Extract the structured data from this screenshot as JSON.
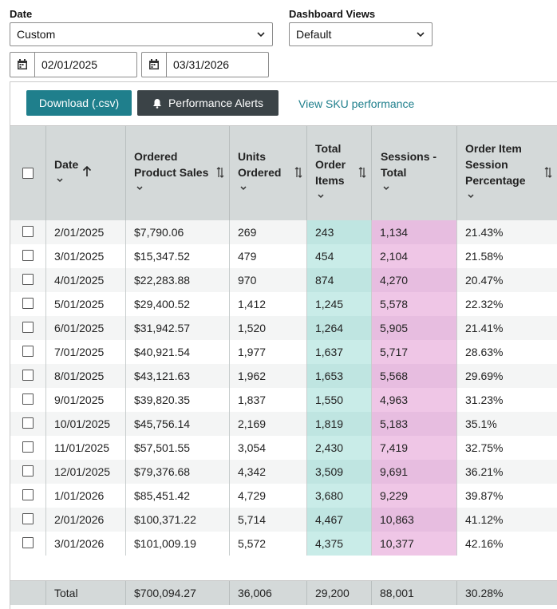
{
  "filters": {
    "date_label": "Date",
    "date_select": "Custom",
    "views_label": "Dashboard Views",
    "views_select": "Default",
    "start_date": "02/01/2025",
    "end_date": "03/31/2026"
  },
  "toolbar": {
    "download_label": "Download (.csv)",
    "alerts_label": "Performance Alerts",
    "sku_link": "View SKU performance"
  },
  "columns": {
    "date": "Date",
    "sales": [
      "Ordered",
      "Product Sales"
    ],
    "units": [
      "Units",
      "Ordered"
    ],
    "items": [
      "Total",
      "Order",
      "Items"
    ],
    "sessions": [
      "Sessions -",
      "Total"
    ],
    "pct": [
      "Order Item",
      "Session",
      "Percentage"
    ]
  },
  "rows": [
    {
      "date": "2/01/2025",
      "sales": "$7,790.06",
      "units": "269",
      "items": "243",
      "sessions": "1,134",
      "pct": "21.43%"
    },
    {
      "date": "3/01/2025",
      "sales": "$15,347.52",
      "units": "479",
      "items": "454",
      "sessions": "2,104",
      "pct": "21.58%"
    },
    {
      "date": "4/01/2025",
      "sales": "$22,283.88",
      "units": "970",
      "items": "874",
      "sessions": "4,270",
      "pct": "20.47%"
    },
    {
      "date": "5/01/2025",
      "sales": "$29,400.52",
      "units": "1,412",
      "items": "1,245",
      "sessions": "5,578",
      "pct": "22.32%"
    },
    {
      "date": "6/01/2025",
      "sales": "$31,942.57",
      "units": "1,520",
      "items": "1,264",
      "sessions": "5,905",
      "pct": "21.41%"
    },
    {
      "date": "7/01/2025",
      "sales": "$40,921.54",
      "units": "1,977",
      "items": "1,637",
      "sessions": "5,717",
      "pct": "28.63%"
    },
    {
      "date": "8/01/2025",
      "sales": "$43,121.63",
      "units": "1,962",
      "items": "1,653",
      "sessions": "5,568",
      "pct": "29.69%"
    },
    {
      "date": "9/01/2025",
      "sales": "$39,820.35",
      "units": "1,837",
      "items": "1,550",
      "sessions": "4,963",
      "pct": "31.23%"
    },
    {
      "date": "10/01/2025",
      "sales": "$45,756.14",
      "units": "2,169",
      "items": "1,819",
      "sessions": "5,183",
      "pct": "35.1%"
    },
    {
      "date": "11/01/2025",
      "sales": "$57,501.55",
      "units": "3,054",
      "items": "2,430",
      "sessions": "7,419",
      "pct": "32.75%"
    },
    {
      "date": "12/01/2025",
      "sales": "$79,376.68",
      "units": "4,342",
      "items": "3,509",
      "sessions": "9,691",
      "pct": "36.21%"
    },
    {
      "date": "1/01/2026",
      "sales": "$85,451.42",
      "units": "4,729",
      "items": "3,680",
      "sessions": "9,229",
      "pct": "39.87%"
    },
    {
      "date": "2/01/2026",
      "sales": "$100,371.22",
      "units": "5,714",
      "items": "4,467",
      "sessions": "10,863",
      "pct": "41.12%"
    },
    {
      "date": "3/01/2026",
      "sales": "$101,009.19",
      "units": "5,572",
      "items": "4,375",
      "sessions": "10,377",
      "pct": "42.16%"
    }
  ],
  "total": {
    "label": "Total",
    "sales": "$700,094.27",
    "units": "36,006",
    "items": "29,200",
    "sessions": "88,001",
    "pct": "30.28%"
  },
  "colors": {
    "teal_button": "#1f7f8c",
    "dark_button": "#3b4347",
    "link": "#1f7f8c",
    "highlight_items": "#c9ece8",
    "highlight_sessions": "#efc6e6",
    "header_bg": "#d4d9d9"
  }
}
